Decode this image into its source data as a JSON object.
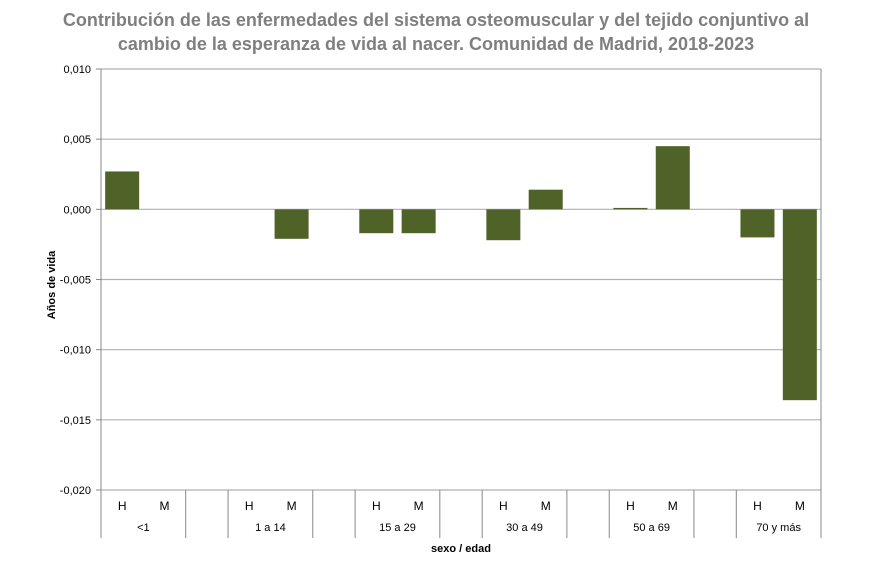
{
  "chart_data": {
    "type": "bar",
    "title": "Contribución de las enfermedades del sistema osteomuscular y del tejido conjuntivo al cambio de la esperanza de vida al nacer. Comunidad de Madrid, 2018-2023",
    "title_lines": [
      "Contribución de las enfermedades del sistema osteomuscular y del tejido conjuntivo al",
      "cambio de la esperanza de vida al nacer. Comunidad de Madrid, 2018-2023"
    ],
    "xlabel": "sexo / edad",
    "ylabel": "Años de vida",
    "ylim": [
      -0.02,
      0.01
    ],
    "yticks": [
      "0,010",
      "0,005",
      "0,000",
      "-0,005",
      "-0,010",
      "-0,015",
      "-0,020"
    ],
    "ytick_values": [
      0.01,
      0.005,
      0,
      -0.005,
      -0.01,
      -0.015,
      -0.02
    ],
    "grid": true,
    "bar_color": "#4f6228",
    "groups": [
      {
        "label": "<1",
        "categories": [
          "H",
          "M"
        ],
        "values": [
          0.0027,
          0
        ]
      },
      {
        "label": "1 a 14",
        "categories": [
          "H",
          "M"
        ],
        "values": [
          0,
          -0.0021
        ]
      },
      {
        "label": "15 a 29",
        "categories": [
          "H",
          "M"
        ],
        "values": [
          -0.0017,
          -0.0017
        ]
      },
      {
        "label": "30 a 49",
        "categories": [
          "H",
          "M"
        ],
        "values": [
          -0.0022,
          0.0014
        ]
      },
      {
        "label": "50 a 69",
        "categories": [
          "H",
          "M"
        ],
        "values": [
          0.0001,
          0.0045
        ]
      },
      {
        "label": "70 y más",
        "categories": [
          "H",
          "M"
        ],
        "values": [
          -0.002,
          -0.0136
        ]
      }
    ]
  }
}
